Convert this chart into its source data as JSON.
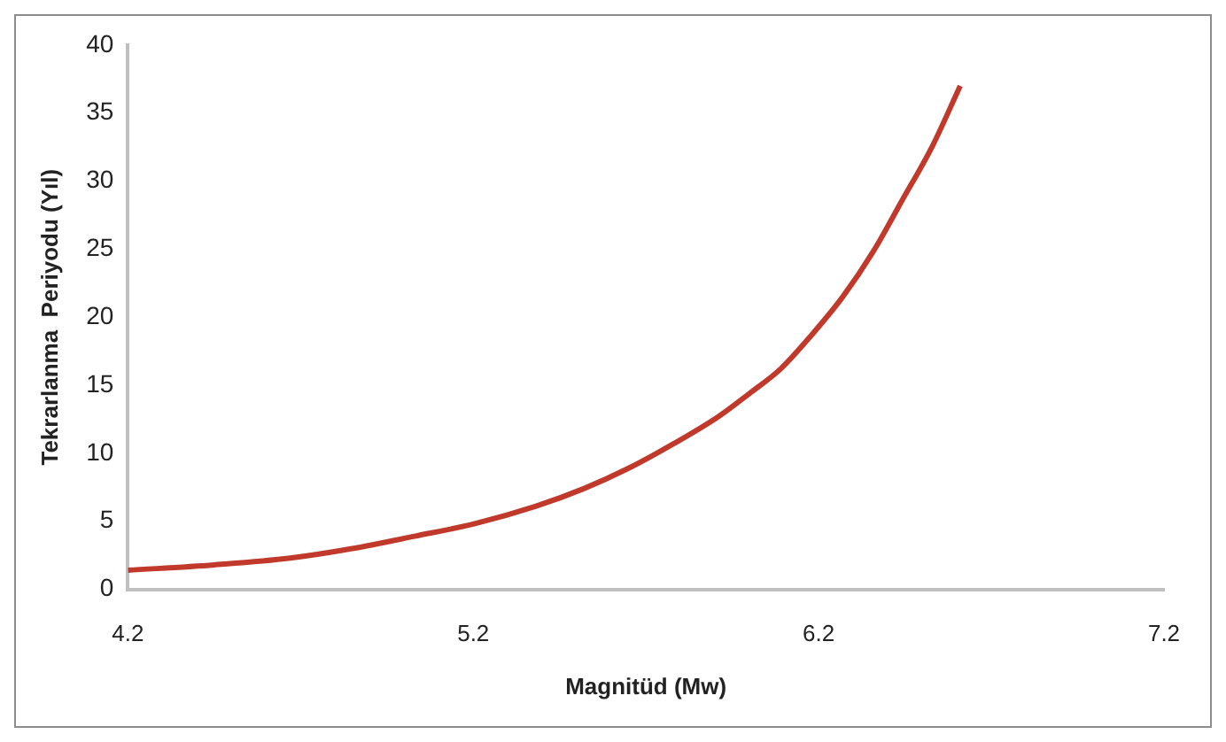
{
  "chart_data": {
    "type": "line",
    "xlabel": "Magnitüd (Mw)",
    "ylabel": "Tekrarlanma  Periyodu (Yıl)",
    "x": [
      4.2,
      4.45,
      4.67,
      4.85,
      5.03,
      5.2,
      5.38,
      5.52,
      5.65,
      5.78,
      5.91,
      6.0,
      6.09,
      6.18,
      6.27,
      6.36,
      6.44,
      6.53,
      6.61
    ],
    "series": [
      {
        "color": "#c0392b",
        "values": [
          1.4,
          1.8,
          2.3,
          3.0,
          3.9,
          4.8,
          6.1,
          7.4,
          8.9,
          10.7,
          12.7,
          14.4,
          16.2,
          18.7,
          21.5,
          24.9,
          28.5,
          32.6,
          37
        ]
      }
    ],
    "xlim": [
      4.2,
      7.2
    ],
    "xticks": [
      4.2,
      5.2,
      6.2,
      7.2
    ],
    "ylim": [
      0,
      40
    ],
    "yticks": [
      0,
      5,
      10,
      15,
      20,
      25,
      30,
      35,
      40
    ],
    "grid": false,
    "legend": false,
    "marker": "none",
    "line_style": "solid"
  }
}
